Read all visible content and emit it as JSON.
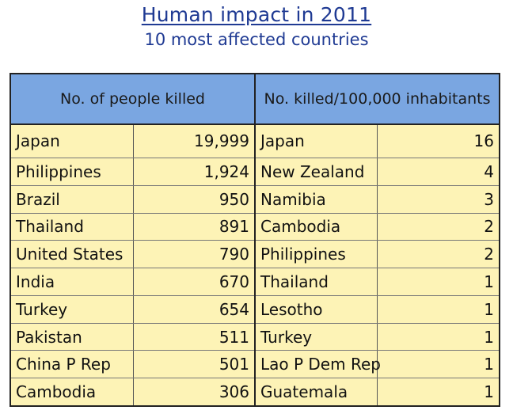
{
  "title": "Human impact in 2011",
  "subtitle": "10 most affected countries",
  "table": {
    "left_header": "No. of people killed",
    "right_header": "No. killed/100,000 inhabitants",
    "rows": [
      {
        "country_a": "Japan",
        "killed": "19,999",
        "country_b": "Japan",
        "per_100k": "16"
      },
      {
        "country_a": "Philippines",
        "killed": "1,924",
        "country_b": "New Zealand",
        "per_100k": "4"
      },
      {
        "country_a": "Brazil",
        "killed": "950",
        "country_b": "Namibia",
        "per_100k": "3"
      },
      {
        "country_a": "Thailand",
        "killed": "891",
        "country_b": "Cambodia",
        "per_100k": "2"
      },
      {
        "country_a": "United States",
        "killed": "790",
        "country_b": "Philippines",
        "per_100k": "2"
      },
      {
        "country_a": "India",
        "killed": "670",
        "country_b": "Thailand",
        "per_100k": "1"
      },
      {
        "country_a": "Turkey",
        "killed": "654",
        "country_b": "Lesotho",
        "per_100k": "1"
      },
      {
        "country_a": "Pakistan",
        "killed": "511",
        "country_b": "Turkey",
        "per_100k": "1"
      },
      {
        "country_a": "China P Rep",
        "killed": "501",
        "country_b": "Lao P Dem Rep",
        "per_100k": "1"
      },
      {
        "country_a": "Cambodia",
        "killed": "306",
        "country_b": "Guatemala",
        "per_100k": "1"
      }
    ]
  },
  "colors": {
    "title": "#1f3a93",
    "header_bg": "#7aa6e1",
    "body_bg": "#fdf3b6"
  }
}
